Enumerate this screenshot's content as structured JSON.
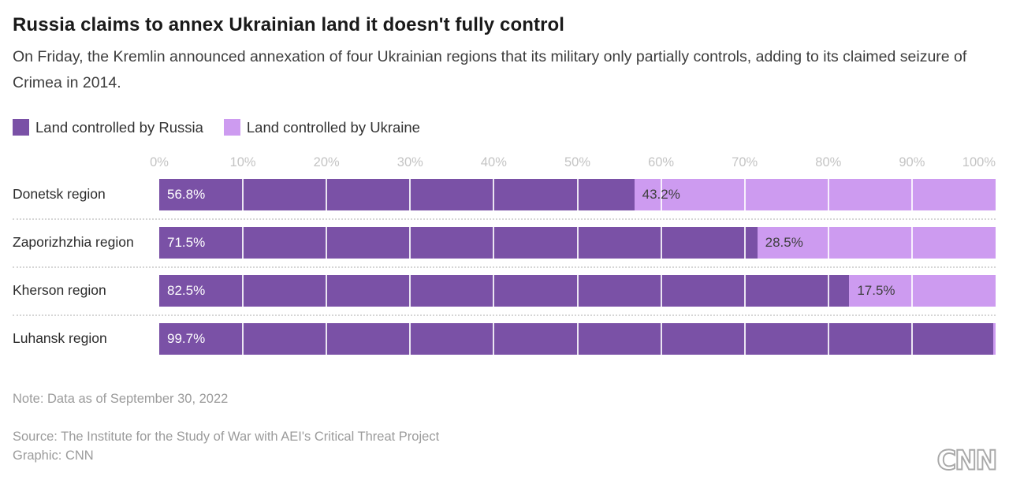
{
  "header": {
    "title": "Russia claims to annex Ukrainian land it doesn't fully control",
    "subtitle": "On Friday, the Kremlin announced annexation of four Ukrainian regions that its military only partially controls, adding to its claimed seizure of Crimea in 2014."
  },
  "legend": {
    "items": [
      {
        "label": "Land controlled by Russia",
        "color": "#7A51A6"
      },
      {
        "label": "Land controlled by Ukraine",
        "color": "#CD9BF0"
      }
    ]
  },
  "chart_data": {
    "type": "bar",
    "orientation": "horizontal",
    "stacked": true,
    "categories": [
      "Donetsk region",
      "Zaporizhzhia region",
      "Kherson region",
      "Luhansk region"
    ],
    "series": [
      {
        "name": "Land controlled by Russia",
        "color": "#7A51A6",
        "values": [
          56.8,
          71.5,
          82.5,
          99.7
        ],
        "labels": [
          "56.8%",
          "71.5%",
          "82.5%",
          "99.7%"
        ]
      },
      {
        "name": "Land controlled by Ukraine",
        "color": "#CD9BF0",
        "values": [
          43.2,
          28.5,
          17.5,
          0.3
        ],
        "labels": [
          "43.2%",
          "28.5%",
          "17.5%",
          ""
        ]
      }
    ],
    "x_ticks": [
      "0%",
      "10%",
      "20%",
      "30%",
      "40%",
      "50%",
      "60%",
      "70%",
      "80%",
      "90%",
      "100%"
    ],
    "xlim": [
      0,
      100
    ],
    "grid": "vertical white gridlines every 10% drawn over bars",
    "legend_position": "top",
    "row_separator": "dotted"
  },
  "footer": {
    "note": "Note: Data as of September 30, 2022",
    "source": "Source: The Institute for the Study of War with AEI's Critical Threat Project",
    "graphic": "Graphic: CNN",
    "logo": "CNN"
  }
}
